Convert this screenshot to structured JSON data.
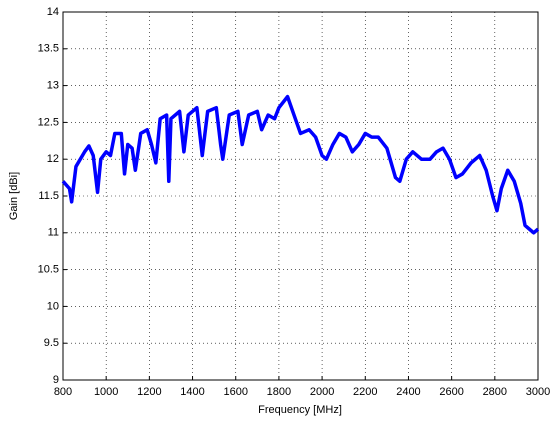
{
  "chart_data": {
    "type": "line",
    "xlabel": "Frequency [MHz]",
    "ylabel": "Gain [dBi]",
    "x": [
      800,
      830,
      840,
      860,
      900,
      920,
      940,
      960,
      975,
      1000,
      1020,
      1040,
      1070,
      1085,
      1100,
      1120,
      1135,
      1160,
      1190,
      1210,
      1230,
      1250,
      1280,
      1290,
      1300,
      1340,
      1360,
      1380,
      1420,
      1445,
      1470,
      1510,
      1530,
      1540,
      1570,
      1610,
      1630,
      1660,
      1700,
      1720,
      1750,
      1780,
      1800,
      1840,
      1870,
      1900,
      1940,
      1970,
      2000,
      2020,
      2050,
      2080,
      2110,
      2140,
      2170,
      2200,
      2230,
      2260,
      2300,
      2340,
      2360,
      2390,
      2420,
      2460,
      2500,
      2530,
      2560,
      2590,
      2620,
      2650,
      2690,
      2730,
      2760,
      2790,
      2810,
      2830,
      2860,
      2890,
      2920,
      2940,
      2960,
      2980,
      3000
    ],
    "series": [
      {
        "color": "#0000ff",
        "values": [
          11.7,
          11.6,
          11.42,
          11.9,
          12.1,
          12.18,
          12.05,
          11.55,
          12.0,
          12.1,
          12.05,
          12.35,
          12.35,
          11.8,
          12.2,
          12.15,
          11.85,
          12.35,
          12.4,
          12.2,
          11.95,
          12.55,
          12.6,
          11.7,
          12.55,
          12.65,
          12.1,
          12.6,
          12.7,
          12.05,
          12.65,
          12.7,
          12.2,
          12.0,
          12.6,
          12.65,
          12.2,
          12.6,
          12.65,
          12.4,
          12.6,
          12.55,
          12.7,
          12.85,
          12.6,
          12.35,
          12.4,
          12.3,
          12.05,
          12.0,
          12.2,
          12.35,
          12.3,
          12.1,
          12.2,
          12.35,
          12.3,
          12.3,
          12.15,
          11.75,
          11.7,
          12.0,
          12.1,
          12.0,
          12.0,
          12.1,
          12.15,
          12.0,
          11.75,
          11.8,
          11.95,
          12.05,
          11.85,
          11.5,
          11.3,
          11.6,
          11.85,
          11.7,
          11.4,
          11.1,
          11.05,
          11.0,
          11.05
        ]
      }
    ],
    "xlim": [
      800,
      3000
    ],
    "ylim": [
      9,
      14
    ],
    "xticks": [
      800,
      1000,
      1200,
      1400,
      1600,
      1800,
      2000,
      2200,
      2400,
      2600,
      2800,
      3000
    ],
    "yticks": [
      9,
      9.5,
      10,
      10.5,
      11,
      11.5,
      12,
      12.5,
      13,
      13.5,
      14
    ],
    "grid": true
  }
}
